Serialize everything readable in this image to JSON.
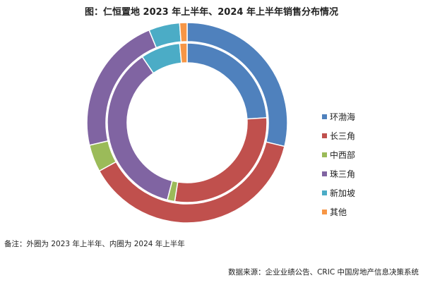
{
  "chart_data": {
    "type": "doughnut",
    "title": "图：仁恒置地 2023 年上半年、2024 年上半年销售分布情况",
    "categories": [
      "环渤海",
      "长三角",
      "中西部",
      "珠三角",
      "新加坡",
      "其他"
    ],
    "colors": [
      "#4f81bd",
      "#c0504d",
      "#9bbb59",
      "#8064a2",
      "#4bacc6",
      "#f79646"
    ],
    "series": [
      {
        "name": "外圈为 2023 年上半年",
        "values": [
          28.8,
          38.2,
          4.4,
          22.4,
          5.0,
          1.2
        ]
      },
      {
        "name": "内圈为 2024 年上半年",
        "values": [
          24.0,
          28.5,
          1.5,
          36.5,
          8.0,
          1.5
        ]
      }
    ],
    "legend_position": "right"
  },
  "note": "备注：外圈为 2023 年上半年、内圈为 2024 年上半年",
  "source": "数据来源：企业业绩公告、CRIC 中国房地产信息决策系统"
}
